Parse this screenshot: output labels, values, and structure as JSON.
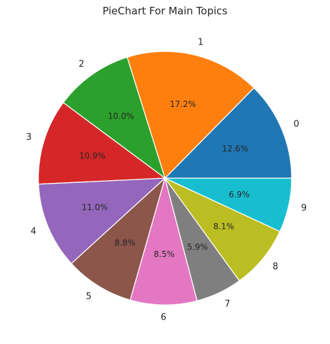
{
  "chart_data": {
    "type": "pie",
    "title": "PieChart For Main Topics",
    "categories": [
      "0",
      "1",
      "2",
      "3",
      "4",
      "5",
      "6",
      "7",
      "8",
      "9"
    ],
    "values": [
      12.6,
      17.2,
      10.0,
      10.9,
      11.0,
      8.8,
      8.5,
      5.9,
      8.1,
      6.9
    ],
    "value_labels": [
      "12.6%",
      "17.2%",
      "10.0%",
      "10.9%",
      "11.0%",
      "8.8%",
      "8.5%",
      "5.9%",
      "8.1%",
      "6.9%"
    ],
    "colors": [
      "#1f77b4",
      "#ff7f0e",
      "#2ca02c",
      "#d62728",
      "#9467bd",
      "#8c564b",
      "#e377c2",
      "#7f7f7f",
      "#bcbd22",
      "#17becf"
    ],
    "start_angle_deg": 0,
    "direction": "counterclockwise"
  }
}
